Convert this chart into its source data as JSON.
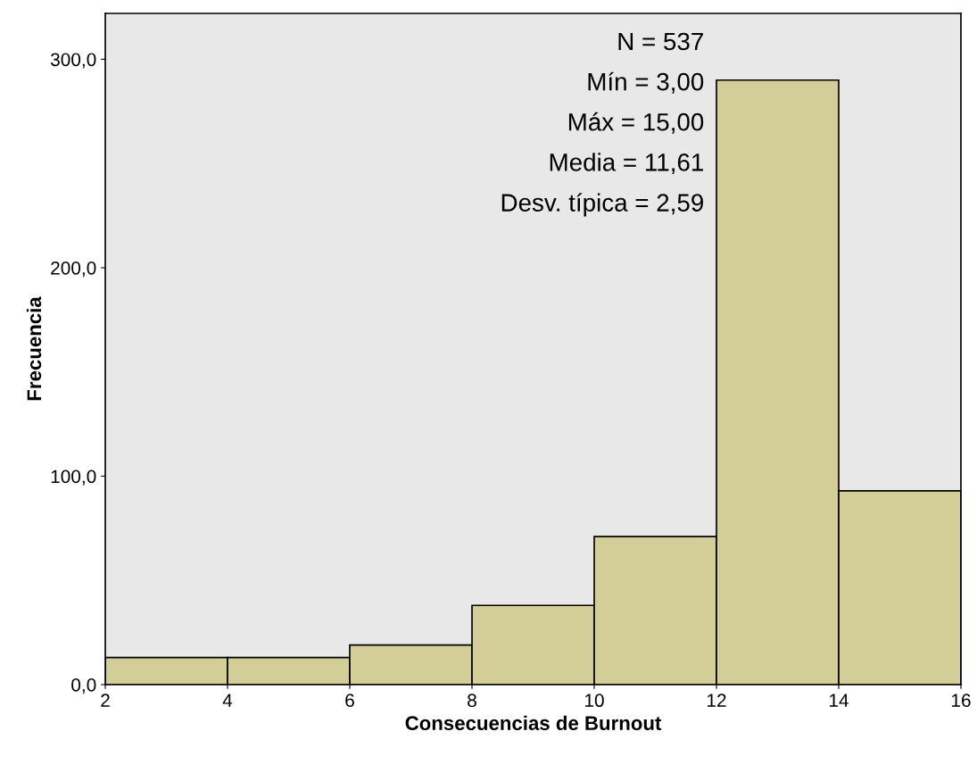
{
  "chart_data": {
    "type": "histogram",
    "xlabel": "Consecuencias de Burnout",
    "ylabel": "Frecuencia",
    "bins": [
      2,
      4,
      6,
      8,
      10,
      12,
      14,
      16
    ],
    "values": [
      13,
      13,
      19,
      38,
      71,
      290,
      93
    ],
    "color": "#d3cd97",
    "xlim": [
      2,
      16
    ],
    "xticks": [
      2,
      4,
      6,
      8,
      10,
      12,
      14,
      16
    ],
    "ylim": [
      0,
      322
    ],
    "yticks": [
      {
        "value": 0,
        "label": "0,0"
      },
      {
        "value": 100,
        "label": "100,0"
      },
      {
        "value": 200,
        "label": "200,0"
      },
      {
        "value": 300,
        "label": "300,0"
      }
    ],
    "annotations": [
      "N = 537",
      "Mín = 3,00",
      "Máx = 15,00",
      "Media = 11,61",
      "Desv. típica = 2,59"
    ],
    "grid": false,
    "legend": false
  }
}
